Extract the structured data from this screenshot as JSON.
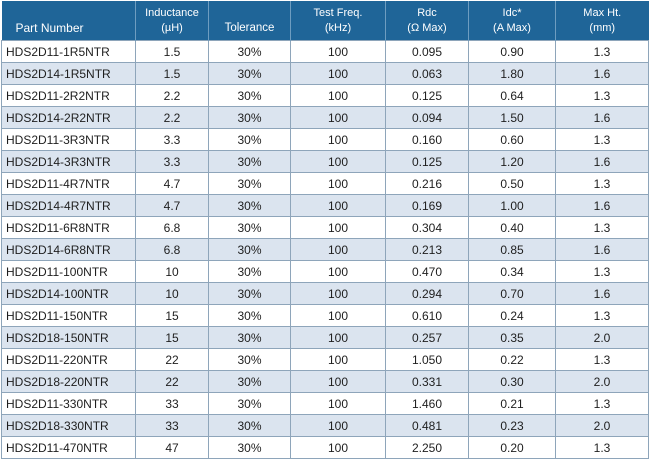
{
  "table": {
    "headers": [
      {
        "line1": "",
        "line2": "Part Number"
      },
      {
        "line1": "Inductance",
        "line2": "(µH)"
      },
      {
        "line1": "",
        "line2": "Tolerance"
      },
      {
        "line1": "Test Freq.",
        "line2": "(kHz)"
      },
      {
        "line1": "Rdc",
        "line2": "(Ω Max)"
      },
      {
        "line1": "Idc*",
        "line2": "(A Max)"
      },
      {
        "line1": "Max Ht.",
        "line2": "(mm)"
      }
    ],
    "rows": [
      [
        "HDS2D11-1R5NTR",
        "1.5",
        "30%",
        "100",
        "0.095",
        "0.90",
        "1.3"
      ],
      [
        "HDS2D14-1R5NTR",
        "1.5",
        "30%",
        "100",
        "0.063",
        "1.80",
        "1.6"
      ],
      [
        "HDS2D11-2R2NTR",
        "2.2",
        "30%",
        "100",
        "0.125",
        "0.64",
        "1.3"
      ],
      [
        "HDS2D14-2R2NTR",
        "2.2",
        "30%",
        "100",
        "0.094",
        "1.50",
        "1.6"
      ],
      [
        "HDS2D11-3R3NTR",
        "3.3",
        "30%",
        "100",
        "0.160",
        "0.60",
        "1.3"
      ],
      [
        "HDS2D14-3R3NTR",
        "3.3",
        "30%",
        "100",
        "0.125",
        "1.20",
        "1.6"
      ],
      [
        "HDS2D11-4R7NTR",
        "4.7",
        "30%",
        "100",
        "0.216",
        "0.50",
        "1.3"
      ],
      [
        "HDS2D14-4R7NTR",
        "4.7",
        "30%",
        "100",
        "0.169",
        "1.00",
        "1.6"
      ],
      [
        "HDS2D11-6R8NTR",
        "6.8",
        "30%",
        "100",
        "0.304",
        "0.40",
        "1.3"
      ],
      [
        "HDS2D14-6R8NTR",
        "6.8",
        "30%",
        "100",
        "0.213",
        "0.85",
        "1.6"
      ],
      [
        "HDS2D11-100NTR",
        "10",
        "30%",
        "100",
        "0.470",
        "0.34",
        "1.3"
      ],
      [
        "HDS2D14-100NTR",
        "10",
        "30%",
        "100",
        "0.294",
        "0.70",
        "1.6"
      ],
      [
        "HDS2D11-150NTR",
        "15",
        "30%",
        "100",
        "0.610",
        "0.24",
        "1.3"
      ],
      [
        "HDS2D18-150NTR",
        "15",
        "30%",
        "100",
        "0.257",
        "0.35",
        "2.0"
      ],
      [
        "HDS2D11-220NTR",
        "22",
        "30%",
        "100",
        "1.050",
        "0.22",
        "1.3"
      ],
      [
        "HDS2D18-220NTR",
        "22",
        "30%",
        "100",
        "0.331",
        "0.30",
        "2.0"
      ],
      [
        "HDS2D11-330NTR",
        "33",
        "30%",
        "100",
        "1.460",
        "0.21",
        "1.3"
      ],
      [
        "HDS2D18-330NTR",
        "33",
        "30%",
        "100",
        "0.481",
        "0.23",
        "2.0"
      ],
      [
        "HDS2D11-470NTR",
        "47",
        "30%",
        "100",
        "2.250",
        "0.20",
        "1.3"
      ]
    ]
  },
  "colors": {
    "header_bg": "#1f6598",
    "header_text": "#ffffff",
    "row_alt_bg": "#dbe4ef",
    "row_bg": "#ffffff",
    "grid": "#8ea5ba"
  }
}
